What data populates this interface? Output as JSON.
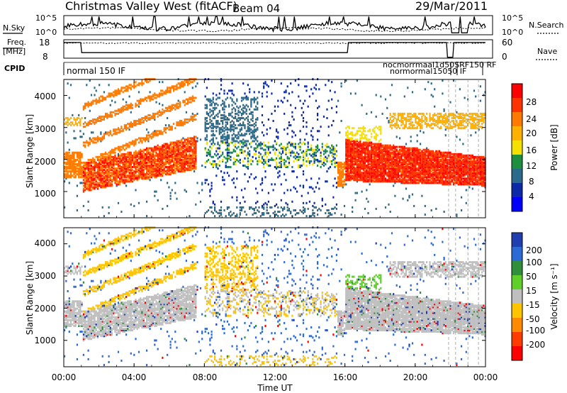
{
  "header": {
    "title": "Christmas Valley West (fitACF)",
    "beam": "Beam 04",
    "date": "29/Mar/2011"
  },
  "top_panels": {
    "nsky_label": "N.Sky",
    "nsky_ticks": [
      "10^5",
      "10^0"
    ],
    "nsearch_label": "N.Search",
    "nsearch_ticks": [
      "10^5",
      "10^0"
    ],
    "freq_label_line1": "Freq.",
    "freq_label_line2": "[MHz]",
    "freq_ticks": [
      "18",
      "8"
    ],
    "nave_label": "Nave",
    "nave_ticks": [
      "60",
      "0"
    ],
    "cpid_label": "CPID",
    "cpid_left": "normal 150 IF",
    "cpid_right_top": "nocmorrmaal1d50SRF150 RF",
    "cpid_right_bottom": "normormal15050 IF"
  },
  "power_legend": {
    "ticks": [
      "28",
      "24",
      "20",
      "16",
      "12",
      "8",
      "4"
    ],
    "label": "Power [dB]",
    "colors": [
      "#ff0000",
      "#ff3300",
      "#ff7a00",
      "#ffb000",
      "#f5e000",
      "#1d8f3f",
      "#2a6a8a",
      "#0b2aa8",
      "#0000ff"
    ]
  },
  "velocity_legend": {
    "ticks": [
      "200",
      "100",
      "50",
      "15",
      "-15",
      "-50",
      "-100",
      "-200"
    ],
    "label": "Velocity [m s⁻¹]",
    "colors": [
      "#1f3fb0",
      "#2c6ad6",
      "#2f8f3a",
      "#5fcf2a",
      "#bfbfbf",
      "#ffc400",
      "#ff8a00",
      "#ff3c00",
      "#ff0000"
    ]
  },
  "axes": {
    "ylabel": "Slant Range [km]",
    "yticks": [
      "4000",
      "3000",
      "2000",
      "1000"
    ],
    "xticks": [
      "00:00",
      "04:00",
      "08:00",
      "12:00",
      "16:00",
      "20:00",
      "00:00"
    ],
    "xlabel": "Time UT"
  },
  "chart_data": {
    "type": "heatmap",
    "x_range_hours": [
      0,
      24
    ],
    "y_range_km": [
      180,
      4500
    ],
    "xticks_hours": [
      0,
      4,
      8,
      12,
      16,
      20,
      24
    ],
    "yticks_km": [
      1000,
      2000,
      3000,
      4000
    ],
    "power_scale_db": [
      0,
      30
    ],
    "velocity_scale_ms": [
      -200,
      200
    ],
    "grid": false
  }
}
